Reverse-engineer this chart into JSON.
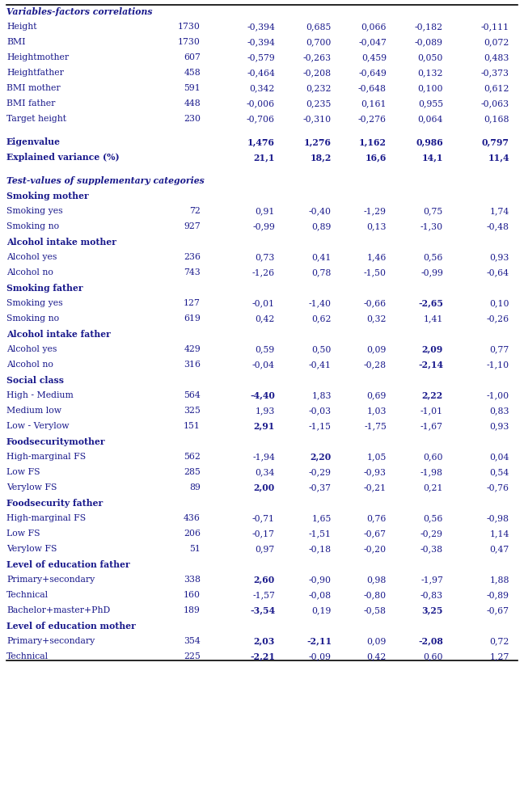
{
  "rows": [
    {
      "label": "Variables-factors correlations",
      "n": "",
      "f1": "",
      "f2": "",
      "f3": "",
      "f4": "",
      "f5": "",
      "style": "section_header"
    },
    {
      "label": "Height",
      "n": "1730",
      "f1": "-0,394",
      "f2": "0,685",
      "f3": "0,066",
      "f4": "-0,182",
      "f5": "-0,111",
      "style": "normal",
      "bold_cols": []
    },
    {
      "label": "BMI",
      "n": "1730",
      "f1": "-0,394",
      "f2": "0,700",
      "f3": "-0,047",
      "f4": "-0,089",
      "f5": "0,072",
      "style": "normal",
      "bold_cols": []
    },
    {
      "label": "Heightmother",
      "n": "607",
      "f1": "-0,579",
      "f2": "-0,263",
      "f3": "0,459",
      "f4": "0,050",
      "f5": "0,483",
      "style": "normal",
      "bold_cols": []
    },
    {
      "label": "Heightfather",
      "n": "458",
      "f1": "-0,464",
      "f2": "-0,208",
      "f3": "-0,649",
      "f4": "0,132",
      "f5": "-0,373",
      "style": "normal",
      "bold_cols": []
    },
    {
      "label": "BMI mother",
      "n": "591",
      "f1": "0,342",
      "f2": "0,232",
      "f3": "-0,648",
      "f4": "0,100",
      "f5": "0,612",
      "style": "normal",
      "bold_cols": []
    },
    {
      "label": "BMI father",
      "n": "448",
      "f1": "-0,006",
      "f2": "0,235",
      "f3": "0,161",
      "f4": "0,955",
      "f5": "-0,063",
      "style": "normal",
      "bold_cols": []
    },
    {
      "label": "Target height",
      "n": "230",
      "f1": "-0,706",
      "f2": "-0,310",
      "f3": "-0,276",
      "f4": "0,064",
      "f5": "0,168",
      "style": "normal",
      "bold_cols": []
    },
    {
      "label": "",
      "n": "",
      "f1": "",
      "f2": "",
      "f3": "",
      "f4": "",
      "f5": "",
      "style": "spacer"
    },
    {
      "label": "Eigenvalue",
      "n": "",
      "f1": "1,476",
      "f2": "1,276",
      "f3": "1,162",
      "f4": "0,986",
      "f5": "0,797",
      "style": "bold",
      "bold_cols": [
        1,
        2,
        3,
        4,
        5
      ]
    },
    {
      "label": "Explained variance (%)",
      "n": "",
      "f1": "21,1",
      "f2": "18,2",
      "f3": "16,6",
      "f4": "14,1",
      "f5": "11,4",
      "style": "bold",
      "bold_cols": [
        1,
        2,
        3,
        4,
        5
      ]
    },
    {
      "label": "",
      "n": "",
      "f1": "",
      "f2": "",
      "f3": "",
      "f4": "",
      "f5": "",
      "style": "spacer"
    },
    {
      "label": "Test-values of supplementary categories",
      "n": "",
      "f1": "",
      "f2": "",
      "f3": "",
      "f4": "",
      "f5": "",
      "style": "section_header"
    },
    {
      "label": "Smoking mother",
      "n": "",
      "f1": "",
      "f2": "",
      "f3": "",
      "f4": "",
      "f5": "",
      "style": "bold",
      "bold_cols": []
    },
    {
      "label": "Smoking yes",
      "n": "72",
      "f1": "0,91",
      "f2": "-0,40",
      "f3": "-1,29",
      "f4": "0,75",
      "f5": "1,74",
      "style": "normal",
      "bold_cols": []
    },
    {
      "label": "Smoking no",
      "n": "927",
      "f1": "-0,99",
      "f2": "0,89",
      "f3": "0,13",
      "f4": "-1,30",
      "f5": "-0,48",
      "style": "normal",
      "bold_cols": []
    },
    {
      "label": "Alcohol intake mother",
      "n": "",
      "f1": "",
      "f2": "",
      "f3": "",
      "f4": "",
      "f5": "",
      "style": "bold",
      "bold_cols": []
    },
    {
      "label": "Alcohol yes",
      "n": "236",
      "f1": "0,73",
      "f2": "0,41",
      "f3": "1,46",
      "f4": "0,56",
      "f5": "0,93",
      "style": "normal",
      "bold_cols": []
    },
    {
      "label": "Alcohol no",
      "n": "743",
      "f1": "-1,26",
      "f2": "0,78",
      "f3": "-1,50",
      "f4": "-0,99",
      "f5": "-0,64",
      "style": "normal",
      "bold_cols": []
    },
    {
      "label": "Smoking father",
      "n": "",
      "f1": "",
      "f2": "",
      "f3": "",
      "f4": "",
      "f5": "",
      "style": "bold",
      "bold_cols": []
    },
    {
      "label": "Smoking yes",
      "n": "127",
      "f1": "-0,01",
      "f2": "-1,40",
      "f3": "-0,66",
      "f4": "-2,65",
      "f5": "0,10",
      "style": "normal",
      "bold_cols": [
        4
      ]
    },
    {
      "label": "Smoking no",
      "n": "619",
      "f1": "0,42",
      "f2": "0,62",
      "f3": "0,32",
      "f4": "1,41",
      "f5": "-0,26",
      "style": "normal",
      "bold_cols": []
    },
    {
      "label": "Alcohol intake father",
      "n": "",
      "f1": "",
      "f2": "",
      "f3": "",
      "f4": "",
      "f5": "",
      "style": "bold",
      "bold_cols": []
    },
    {
      "label": "Alcohol yes",
      "n": "429",
      "f1": "0,59",
      "f2": "0,50",
      "f3": "0,09",
      "f4": "2,09",
      "f5": "0,77",
      "style": "normal",
      "bold_cols": [
        4
      ]
    },
    {
      "label": "Alcohol no",
      "n": "316",
      "f1": "-0,04",
      "f2": "-0,41",
      "f3": "-0,28",
      "f4": "-2,14",
      "f5": "-1,10",
      "style": "normal",
      "bold_cols": [
        4
      ]
    },
    {
      "label": "Social class",
      "n": "",
      "f1": "",
      "f2": "",
      "f3": "",
      "f4": "",
      "f5": "",
      "style": "bold",
      "bold_cols": []
    },
    {
      "label": "High - Medium",
      "n": "564",
      "f1": "-4,40",
      "f2": "1,83",
      "f3": "0,69",
      "f4": "2,22",
      "f5": "-1,00",
      "style": "normal",
      "bold_cols": [
        1,
        4
      ]
    },
    {
      "label": "Medium low",
      "n": "325",
      "f1": "1,93",
      "f2": "-0,03",
      "f3": "1,03",
      "f4": "-1,01",
      "f5": "0,83",
      "style": "normal",
      "bold_cols": []
    },
    {
      "label": "Low - Verylow",
      "n": "151",
      "f1": "2,91",
      "f2": "-1,15",
      "f3": "-1,75",
      "f4": "-1,67",
      "f5": "0,93",
      "style": "normal",
      "bold_cols": [
        1
      ]
    },
    {
      "label": "Foodsecuritymother",
      "n": "",
      "f1": "",
      "f2": "",
      "f3": "",
      "f4": "",
      "f5": "",
      "style": "bold",
      "bold_cols": []
    },
    {
      "label": "High-marginal FS",
      "n": "562",
      "f1": "-1,94",
      "f2": "2,20",
      "f3": "1,05",
      "f4": "0,60",
      "f5": "0,04",
      "style": "normal",
      "bold_cols": [
        2
      ]
    },
    {
      "label": "Low FS",
      "n": "285",
      "f1": "0,34",
      "f2": "-0,29",
      "f3": "-0,93",
      "f4": "-1,98",
      "f5": "0,54",
      "style": "normal",
      "bold_cols": []
    },
    {
      "label": "Verylow FS",
      "n": "89",
      "f1": "2,00",
      "f2": "-0,37",
      "f3": "-0,21",
      "f4": "0,21",
      "f5": "-0,76",
      "style": "normal",
      "bold_cols": [
        1
      ]
    },
    {
      "label": "Foodsecurity father",
      "n": "",
      "f1": "",
      "f2": "",
      "f3": "",
      "f4": "",
      "f5": "",
      "style": "bold",
      "bold_cols": []
    },
    {
      "label": "High-marginal FS",
      "n": "436",
      "f1": "-0,71",
      "f2": "1,65",
      "f3": "0,76",
      "f4": "0,56",
      "f5": "-0,98",
      "style": "normal",
      "bold_cols": []
    },
    {
      "label": "Low FS",
      "n": "206",
      "f1": "-0,17",
      "f2": "-1,51",
      "f3": "-0,67",
      "f4": "-0,29",
      "f5": "1,14",
      "style": "normal",
      "bold_cols": []
    },
    {
      "label": "Verylow FS",
      "n": "51",
      "f1": "0,97",
      "f2": "-0,18",
      "f3": "-0,20",
      "f4": "-0,38",
      "f5": "0,47",
      "style": "normal",
      "bold_cols": []
    },
    {
      "label": "Level of education father",
      "n": "",
      "f1": "",
      "f2": "",
      "f3": "",
      "f4": "",
      "f5": "",
      "style": "bold",
      "bold_cols": []
    },
    {
      "label": "Primary+secondary",
      "n": "338",
      "f1": "2,60",
      "f2": "-0,90",
      "f3": "0,98",
      "f4": "-1,97",
      "f5": "1,88",
      "style": "normal",
      "bold_cols": [
        1
      ]
    },
    {
      "label": "Technical",
      "n": "160",
      "f1": "-1,57",
      "f2": "-0,08",
      "f3": "-0,80",
      "f4": "-0,83",
      "f5": "-0,89",
      "style": "normal",
      "bold_cols": []
    },
    {
      "label": "Bachelor+master+PhD",
      "n": "189",
      "f1": "-3,54",
      "f2": "0,19",
      "f3": "-0,58",
      "f4": "3,25",
      "f5": "-0,67",
      "style": "normal",
      "bold_cols": [
        1,
        4
      ]
    },
    {
      "label": "Level of education mother",
      "n": "",
      "f1": "",
      "f2": "",
      "f3": "",
      "f4": "",
      "f5": "",
      "style": "bold",
      "bold_cols": []
    },
    {
      "label": "Primary+secondary",
      "n": "354",
      "f1": "2,03",
      "f2": "-2,11",
      "f3": "0,09",
      "f4": "-2,08",
      "f5": "0,72",
      "style": "normal",
      "bold_cols": [
        1,
        2,
        4
      ]
    },
    {
      "label": "Technical",
      "n": "225",
      "f1": "-2,21",
      "f2": "-0,09",
      "f3": "0,42",
      "f4": "0,60",
      "f5": "1,27",
      "style": "normal",
      "bold_cols": [
        1
      ]
    }
  ],
  "text_color": "#1a1a8c",
  "background_color": "#ffffff",
  "font_size": 7.8
}
